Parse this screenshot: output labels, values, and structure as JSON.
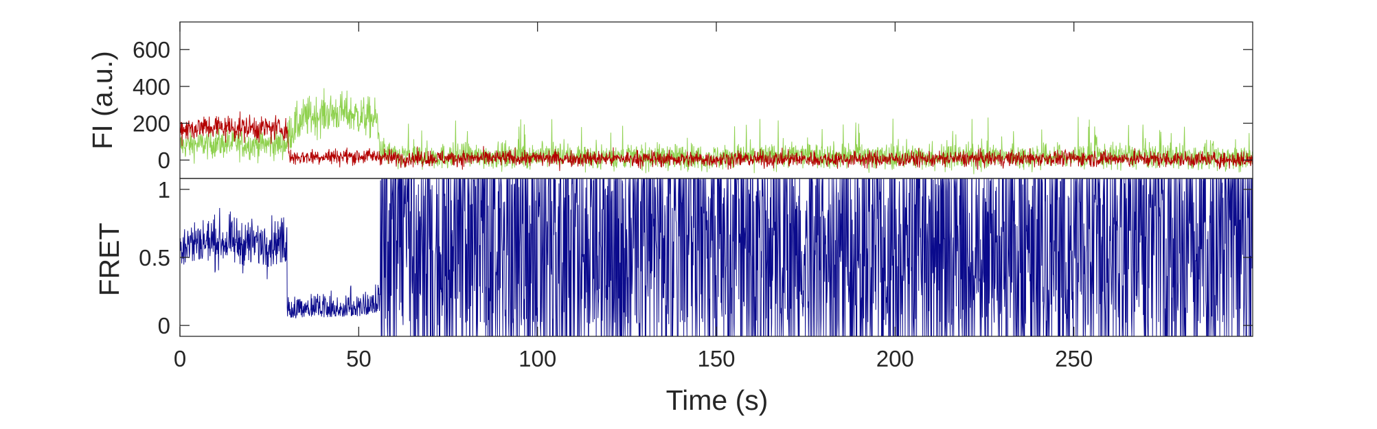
{
  "chart_data": [
    {
      "id": "fluorescence",
      "type": "line",
      "title": "",
      "xlabel": "",
      "ylabel": "FI (a.u.)",
      "xlim": [
        0,
        300
      ],
      "ylim": [
        -100,
        750
      ],
      "yticks": [
        0,
        200,
        400,
        600
      ],
      "ytick_labels": [
        "0",
        "200",
        "400",
        "600"
      ],
      "grid": false,
      "legend": "none",
      "series": [
        {
          "color": "#8fd14f",
          "description_points": {
            "x": [
              0,
              10,
              20,
              30,
              30.5,
              35,
              40,
              45,
              50,
              55,
              56,
              60,
              80,
              100,
              120,
              150,
              175,
              200,
              225,
              250,
              275,
              300
            ],
            "y": [
              80,
              90,
              85,
              85,
              150,
              230,
              250,
              260,
              240,
              220,
              60,
              20,
              20,
              25,
              20,
              15,
              25,
              20,
              15,
              20,
              20,
              10
            ]
          }
        },
        {
          "color": "#b30000",
          "description_points": {
            "x": [
              0,
              10,
              20,
              30,
              30.5,
              40,
              50,
              56,
              60,
              100,
              150,
              200,
              250,
              300
            ],
            "y": [
              170,
              180,
              175,
              170,
              15,
              20,
              20,
              20,
              10,
              10,
              5,
              5,
              10,
              0
            ]
          }
        }
      ]
    },
    {
      "id": "fret",
      "type": "line",
      "title": "",
      "xlabel": "Time (s)",
      "ylabel": "FRET",
      "xlim": [
        0,
        300
      ],
      "ylim": [
        -0.08,
        1.08
      ],
      "xticks": [
        0,
        50,
        100,
        150,
        200,
        250
      ],
      "xtick_labels": [
        "0",
        "50",
        "100",
        "150",
        "200",
        "250"
      ],
      "yticks": [
        0,
        0.5,
        1
      ],
      "ytick_labels": [
        "0",
        "0.5",
        "1"
      ],
      "grid": false,
      "legend": "none",
      "series": [
        {
          "color": "#0a0a8c",
          "description_points": {
            "x": [
              0,
              10,
              20,
              29.9,
              30,
              40,
              50,
              56,
              57,
              100,
              150,
              200,
              250,
              300
            ],
            "y": [
              0.6,
              0.62,
              0.6,
              0.62,
              0.05,
              0.06,
              0.06,
              0.1,
              0.5,
              0.5,
              0.5,
              0.5,
              0.5,
              0.5
            ]
          }
        }
      ]
    }
  ]
}
